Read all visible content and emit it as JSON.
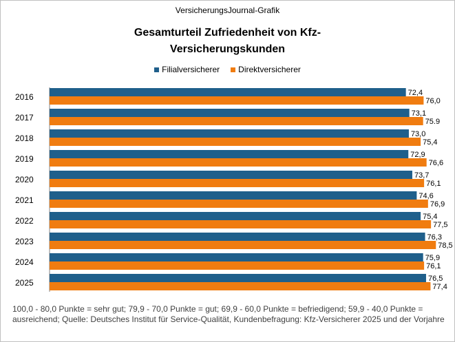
{
  "source_line": "VersicherungsJournal-Grafik",
  "title_line1": "Gesamturteil Zufriedenheit von Kfz-",
  "title_line2": "Versicherungskunden",
  "footnote": "100,0 - 80,0 Punkte = sehr gut; 79,9 - 70,0 Punkte = gut; 69,9 - 60,0 Punkte = befriedigend;  59,9 - 40,0 Punkte = ausreichend;  Quelle: Deutsches Institut für Service-Qualität,  Kundenbefragung:  Kfz-Versicherer 2025 und der Vorjahre",
  "chart_data": {
    "type": "bar",
    "orientation": "horizontal",
    "categories": [
      "2016",
      "2017",
      "2018",
      "2019",
      "2020",
      "2021",
      "2022",
      "2023",
      "2024",
      "2025"
    ],
    "series": [
      {
        "name": "Filialversicherer",
        "color": "#1f5f8b",
        "values": [
          72.4,
          73.1,
          73.0,
          72.9,
          73.7,
          74.6,
          75.4,
          76.3,
          75.9,
          76.5
        ],
        "labels": [
          "72,4",
          "73,1",
          "73,0",
          "72,9",
          "73,7",
          "74,6",
          "75,4",
          "76,3",
          "75,9",
          "76,5"
        ]
      },
      {
        "name": "Direktversicherer",
        "color": "#f07c10",
        "values": [
          76.0,
          75.9,
          75.4,
          76.6,
          76.1,
          76.9,
          77.5,
          78.5,
          76.1,
          77.4
        ],
        "labels": [
          "76,0",
          "75.9",
          "75,4",
          "76,6",
          "76,1",
          "76,9",
          "77,5",
          "78,5",
          "76,1",
          "77,4"
        ]
      }
    ],
    "xlim": [
      0,
      80
    ],
    "grid": false,
    "legend_position": "top"
  }
}
